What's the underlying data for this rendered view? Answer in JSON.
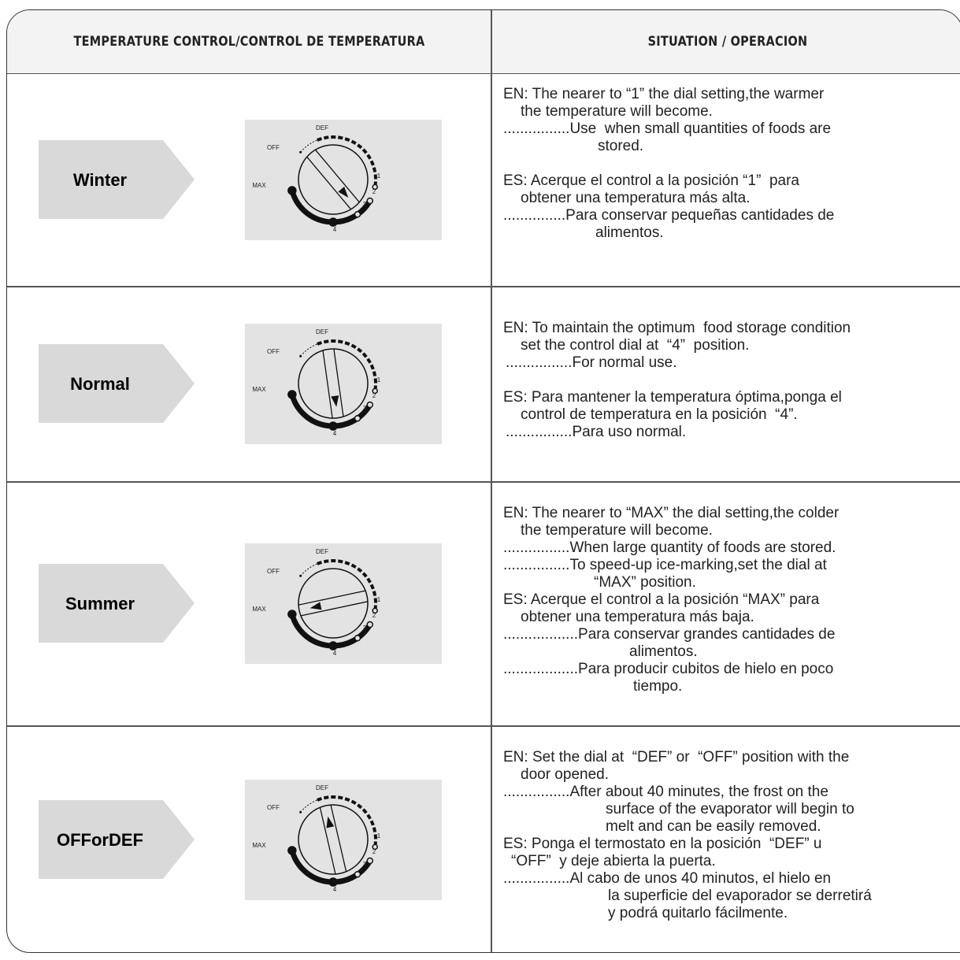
{
  "header": {
    "col1": "TEMPERATURE CONTROL/CONTROL DE TEMPERATURA",
    "col2": "SITUATION / OPERACION"
  },
  "dial_labels": {
    "def": "DEF",
    "off": "OFF",
    "max": "MAX",
    "one": "1",
    "two": "2",
    "three": "3",
    "four": "4"
  },
  "rows": [
    {
      "label": "Winter",
      "en": [
        "EN: The nearer to “1” the dial setting,the warmer",
        "the temperature will become.",
        "................Use  when small quantities of foods are",
        "stored."
      ],
      "es": [
        "ES: Acerque el control a la posición “1”  para",
        "obtener una temperatura más alta.",
        "...............Para conservar pequeñas cantidades de",
        "alimentos."
      ]
    },
    {
      "label": "Normal",
      "en": [
        "EN: To maintain the optimum  food storage condition",
        "set the control dial at  “4”  position.",
        "................For normal use."
      ],
      "es": [
        "ES: Para mantener la temperatura óptima,ponga el",
        "control de temperatura en la posición  “4”.",
        "................Para uso normal."
      ]
    },
    {
      "label": "Summer",
      "en": [
        "EN: The nearer to “MAX” the dial setting,the colder",
        "the temperature will become.",
        "................When large quantity of foods are stored.",
        "................To speed-up ice-marking,set the dial at",
        "“MAX” position."
      ],
      "es": [
        "ES: Acerque el control a la posición “MAX” para",
        "obtener una temperatura más baja.",
        "..................Para conservar grandes cantidades de",
        "alimentos.",
        "..................Para producir cubitos de hielo en poco",
        "tiempo."
      ]
    },
    {
      "label": "OFForDEF",
      "en": [
        "EN: Set the dial at  “DEF” or  “OFF” position with the",
        "door opened.",
        "................After about 40 minutes, the frost on the",
        "surface of the evaporator will begin to",
        "melt and can be easily removed."
      ],
      "es": [
        "ES: Ponga el termostato en la posición  “DEF” u",
        "“OFF”  y deje abierta la puerta.",
        "................Al cabo de unos 40 minutos, el hielo en",
        "la superficie del evaporador se derretirá",
        "y podrá quitarlo fácilmente."
      ]
    }
  ]
}
